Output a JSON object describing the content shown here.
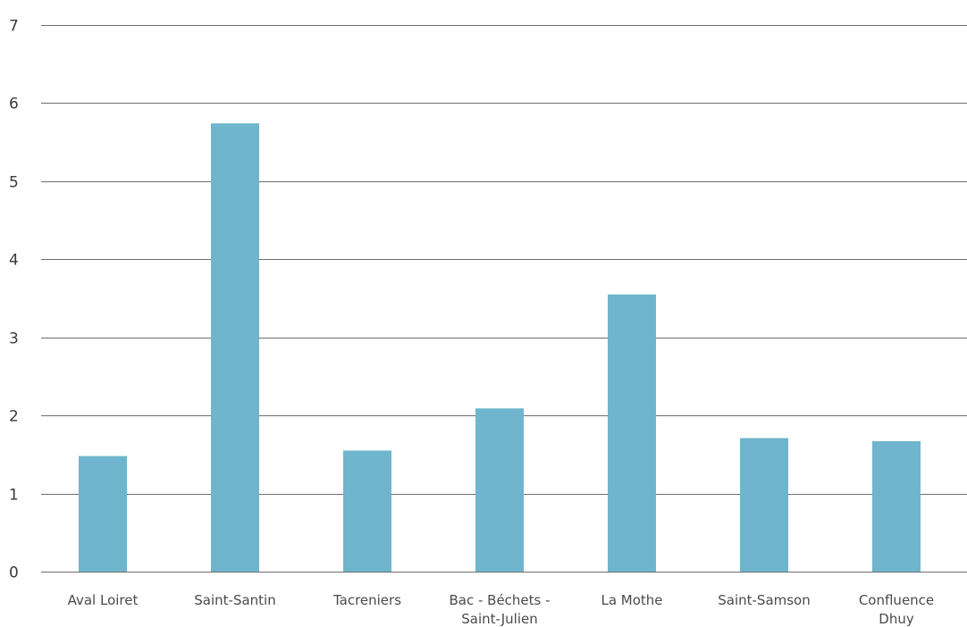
{
  "chart_data": {
    "type": "bar",
    "categories": [
      [
        "Aval Loiret"
      ],
      [
        "Saint-Santin"
      ],
      [
        "Tacreniers"
      ],
      [
        "Bac - Béchets -",
        "Saint-Julien"
      ],
      [
        "La Mothe"
      ],
      [
        "Saint-Samson"
      ],
      [
        "Confluence",
        "Dhuy"
      ]
    ],
    "values": [
      1.48,
      5.74,
      1.55,
      2.09,
      3.55,
      1.71,
      1.67
    ],
    "ylim": [
      0,
      7
    ],
    "yticks": [
      "0",
      "1",
      "2",
      "3",
      "4",
      "5",
      "6",
      "7"
    ],
    "grid": true,
    "bar_color": "#6fb5cd",
    "grid_color": "#6e6e6e"
  }
}
